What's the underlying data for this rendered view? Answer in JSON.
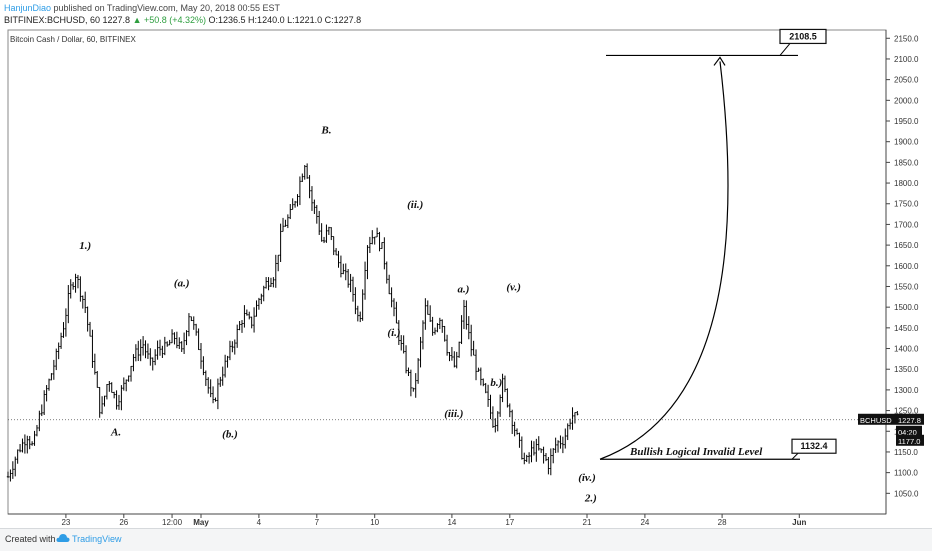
{
  "header": {
    "author": "HanjunDiao",
    "published": " published on TradingView.com, May 20, 2018 00:55 EST",
    "symbol_line": "BITFINEX:BCHUSD, 60  1227.8",
    "change": "▲ +50.8 (+4.32%)",
    "ohlc": " O:1236.5 H:1240.0 L:1221.0 C:1227.8"
  },
  "chart_title": "Bitcoin Cash / Dollar, 60, BITFINEX",
  "price_tags": {
    "symbol": "BCHUSD",
    "last": "1227.8",
    "countdown": "04:20",
    "level": "1177.0"
  },
  "annotations": {
    "target_box": "2108.5",
    "invalid_box": "1132.4",
    "invalid_text": "Bullish Logical Invalid Level"
  },
  "footer": {
    "created": "Created with",
    "brand": "TradingView"
  },
  "colors": {
    "candle": "#000000",
    "background": "#ffffff",
    "brand": "#2f9de6",
    "up": "#2e9e3f",
    "label_bg": "#111111"
  },
  "chart_data": {
    "type": "line",
    "title": "Bitcoin Cash / Dollar, 60, BITFINEX",
    "xlabel": "",
    "ylabel": "",
    "ylim": [
      1000,
      2170
    ],
    "y_ticks": [
      1050,
      1100,
      1150,
      1200,
      1250,
      1300,
      1350,
      1400,
      1450,
      1500,
      1550,
      1600,
      1650,
      1700,
      1750,
      1800,
      1850,
      1900,
      1950,
      2000,
      2050,
      2100,
      2150
    ],
    "x_ticks": [
      "23",
      "26",
      "12:00",
      "May",
      "4",
      "7",
      "10",
      "14",
      "17",
      "21",
      "24",
      "28",
      "Jun"
    ],
    "x_tick_day_index": [
      3,
      6,
      8.5,
      10,
      13,
      16,
      19,
      23,
      26,
      30,
      33,
      37,
      41
    ],
    "series": [
      {
        "name": "BCHUSD",
        "x": [
          0,
          0.5,
          1,
          1.3,
          1.6,
          2,
          2.5,
          2.9,
          3.2,
          3.5,
          4,
          4.4,
          4.8,
          5.2,
          5.6,
          6,
          6.5,
          7,
          7.4,
          7.8,
          8.2,
          8.6,
          9,
          9.4,
          9.8,
          10.2,
          10.6,
          11,
          11.4,
          11.8,
          12.2,
          12.6,
          13,
          13.4,
          13.8,
          14.2,
          14.6,
          15,
          15.4,
          15.7,
          16,
          16.3,
          16.6,
          17,
          17.4,
          17.8,
          18.2,
          18.6,
          19,
          19.4,
          19.8,
          20.2,
          20.6,
          21,
          21.3,
          21.6,
          22,
          22.4,
          22.8,
          23.2,
          23.6,
          24,
          24.4,
          24.8,
          25.2,
          25.6,
          26,
          26.4,
          26.8,
          27.2,
          27.6,
          28,
          28.4,
          28.8,
          29.2,
          29.5
        ],
        "values": [
          1090,
          1150,
          1190,
          1160,
          1230,
          1300,
          1380,
          1460,
          1540,
          1580,
          1500,
          1370,
          1240,
          1330,
          1270,
          1310,
          1380,
          1410,
          1360,
          1400,
          1400,
          1430,
          1390,
          1490,
          1420,
          1340,
          1260,
          1330,
          1380,
          1430,
          1480,
          1460,
          1520,
          1560,
          1580,
          1690,
          1720,
          1780,
          1855,
          1760,
          1720,
          1650,
          1690,
          1620,
          1580,
          1550,
          1460,
          1650,
          1680,
          1640,
          1530,
          1440,
          1360,
          1290,
          1380,
          1500,
          1440,
          1480,
          1390,
          1350,
          1500,
          1400,
          1330,
          1280,
          1210,
          1320,
          1250,
          1180,
          1120,
          1160,
          1150,
          1120,
          1170,
          1180,
          1240,
          1228
        ]
      }
    ],
    "annotations": [
      "1.)",
      "A.",
      "(a.)",
      "(b.)",
      "B.",
      "(i.)",
      "(ii.)",
      "(iii.)",
      "a.)",
      "b.)",
      "(v.)",
      "(iv.)",
      "2.)"
    ],
    "levels": [
      {
        "label": "2108.5",
        "value": 2108.5
      },
      {
        "label": "1132.4",
        "value": 1132.4,
        "text": "Bullish Logical Invalid Level"
      }
    ],
    "grid": false
  }
}
